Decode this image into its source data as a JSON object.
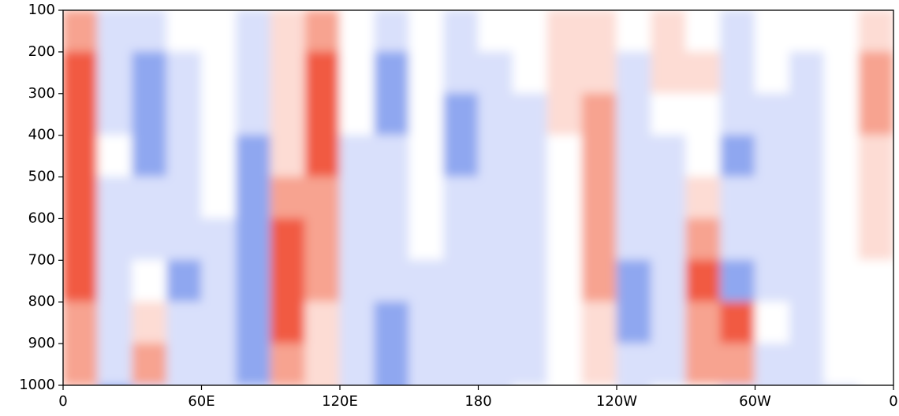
{
  "chart_data": {
    "type": "contour",
    "x": [
      7.5,
      22.5,
      37.5,
      52.5,
      67.5,
      82.5,
      97.5,
      112.5,
      127.5,
      142.5,
      157.5,
      172.5,
      187.5,
      202.5,
      217.5,
      232.5,
      247.5,
      262.5,
      277.5,
      292.5,
      307.5,
      322.5,
      337.5,
      352.5
    ],
    "y": [
      150,
      250,
      350,
      450,
      550,
      650,
      750,
      850,
      950,
      1050
    ],
    "z": [
      [
        2,
        -1,
        -1,
        0,
        0,
        -1,
        1,
        2,
        0,
        -1,
        0,
        -1,
        0,
        0,
        1,
        1,
        0,
        1,
        0,
        -1,
        0,
        0,
        0,
        1
      ],
      [
        3,
        -1,
        -2,
        -1,
        0,
        -1,
        1,
        3,
        0,
        -2,
        0,
        -1,
        -1,
        0,
        1,
        1,
        -1,
        1,
        1,
        -1,
        0,
        -1,
        0,
        2
      ],
      [
        3,
        -1,
        -2,
        -1,
        0,
        -1,
        1,
        3,
        0,
        -2,
        0,
        -2,
        -1,
        -1,
        1,
        2,
        -1,
        0,
        0,
        -1,
        -1,
        -1,
        0,
        2
      ],
      [
        3,
        0,
        -2,
        -1,
        0,
        -2,
        1,
        3,
        -1,
        -1,
        0,
        -2,
        -1,
        -1,
        0,
        2,
        -1,
        -1,
        0,
        -2,
        -1,
        -1,
        0,
        1
      ],
      [
        3,
        -1,
        -1,
        -1,
        0,
        -2,
        2,
        2,
        -1,
        -1,
        0,
        -1,
        -1,
        -1,
        0,
        2,
        -1,
        -1,
        1,
        -1,
        -1,
        -1,
        0,
        1
      ],
      [
        3,
        -1,
        -1,
        -1,
        -1,
        -2,
        3,
        2,
        -1,
        -1,
        0,
        -1,
        -1,
        -1,
        0,
        2,
        -1,
        -1,
        2,
        -1,
        -1,
        -1,
        0,
        1
      ],
      [
        3,
        -1,
        0,
        -2,
        -1,
        -2,
        3,
        2,
        -1,
        -1,
        -1,
        -1,
        -1,
        -1,
        0,
        2,
        -2,
        -1,
        3,
        -2,
        -1,
        -1,
        0,
        0
      ],
      [
        2,
        -1,
        1,
        -1,
        -1,
        -2,
        3,
        1,
        -1,
        -2,
        -1,
        -1,
        -1,
        -1,
        0,
        1,
        -2,
        -1,
        2,
        3,
        0,
        -1,
        0,
        0
      ],
      [
        2,
        -1,
        2,
        -1,
        -1,
        -2,
        2,
        1,
        -1,
        -2,
        -1,
        -1,
        -1,
        -1,
        0,
        1,
        -1,
        -1,
        2,
        2,
        -1,
        -1,
        0,
        0
      ],
      [
        1,
        -2,
        -1,
        -1,
        -1,
        -1,
        1,
        1,
        -1,
        -2,
        -1,
        -1,
        -1,
        0,
        0,
        0,
        -1,
        0,
        0,
        -1,
        -1,
        -1,
        -1,
        0
      ]
    ],
    "levels": [
      -3,
      -2,
      -1,
      0,
      1,
      2,
      3
    ],
    "colors": [
      "#3b62e0",
      "#8fa7f0",
      "#d9e0fb",
      "#ffffff",
      "#fddcd4",
      "#f7a390",
      "#f15a42"
    ],
    "xlim": [
      0,
      360
    ],
    "ylim": [
      100,
      1000
    ],
    "y_inverted": true,
    "xticks": [
      0,
      {
        "value": 60,
        "label": "60E"
      },
      {
        "value": 120,
        "label": "120E"
      },
      180,
      {
        "value": 240,
        "label": "120W"
      },
      {
        "value": 300,
        "label": "60W"
      },
      {
        "value": 360,
        "label": "0"
      }
    ],
    "yticks": [
      100,
      200,
      300,
      400,
      500,
      600,
      700,
      800,
      900,
      1000
    ]
  }
}
